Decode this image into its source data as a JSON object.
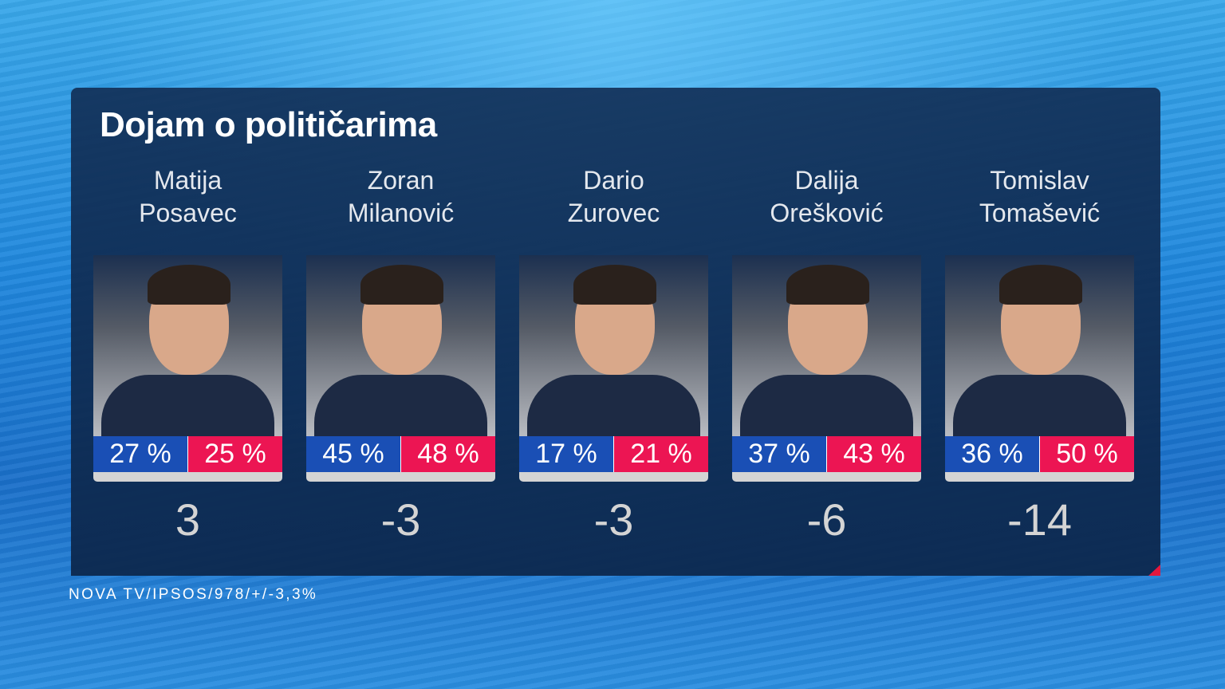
{
  "title": "Dojam o političarima",
  "source": "NOVA TV/IPSOS/978/+/-3,3%",
  "colors": {
    "positive": "#1a4fb5",
    "negative": "#ec1553"
  },
  "politicians": [
    {
      "first": "Matija",
      "last": "Posavec",
      "positive": "27 %",
      "negative": "25 %",
      "net": "3"
    },
    {
      "first": "Zoran",
      "last": "Milanović",
      "positive": "45 %",
      "negative": "48 %",
      "net": "-3"
    },
    {
      "first": "Dario",
      "last": "Zurovec",
      "positive": "17 %",
      "negative": "21 %",
      "net": "-3"
    },
    {
      "first": "Dalija",
      "last": "Orešković",
      "positive": "37 %",
      "negative": "43 %",
      "net": "-6"
    },
    {
      "first": "Tomislav",
      "last": "Tomašević",
      "positive": "36 %",
      "negative": "50 %",
      "net": "-14"
    }
  ]
}
